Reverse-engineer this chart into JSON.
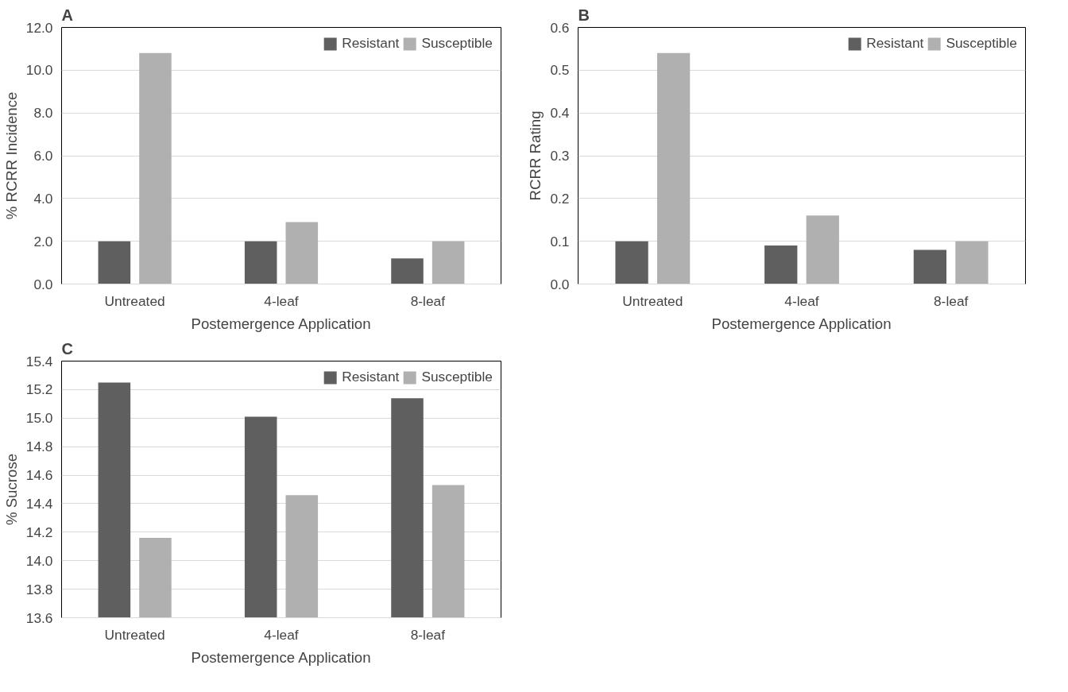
{
  "chart_data": [
    {
      "type": "bar",
      "title": "A",
      "ylabel": "% RCRR Incidence",
      "xlabel": "Postemergence Application",
      "categories": [
        "Untreated",
        "4-leaf",
        "8-leaf"
      ],
      "series": [
        {
          "name": "Resistant",
          "color": "#5f5f5f",
          "values": [
            2.0,
            2.0,
            1.2
          ]
        },
        {
          "name": "Susceptible",
          "color": "#b0b0b0",
          "values": [
            10.8,
            2.9,
            2.0
          ]
        }
      ],
      "ylim": [
        0,
        12
      ],
      "yticks": [
        {
          "value": 0,
          "label": "0.0"
        },
        {
          "value": 2,
          "label": "2.0"
        },
        {
          "value": 4,
          "label": "4.0"
        },
        {
          "value": 6,
          "label": "6.0"
        },
        {
          "value": 8,
          "label": "8.0"
        },
        {
          "value": 10,
          "label": "10.0"
        },
        {
          "value": 12,
          "label": "12.0"
        }
      ],
      "grid": "y",
      "legend": "top right"
    },
    {
      "type": "bar",
      "title": "B",
      "ylabel": "RCRR Rating",
      "xlabel": "Postemergence Application",
      "categories": [
        "Untreated",
        "4-leaf",
        "8-leaf"
      ],
      "series": [
        {
          "name": "Resistant",
          "color": "#5f5f5f",
          "values": [
            0.1,
            0.09,
            0.08
          ]
        },
        {
          "name": "Susceptible",
          "color": "#b0b0b0",
          "values": [
            0.54,
            0.16,
            0.1
          ]
        }
      ],
      "ylim": [
        0,
        0.6
      ],
      "yticks": [
        {
          "value": 0,
          "label": "0.0"
        },
        0.1,
        0.2,
        0.3,
        0.4,
        0.5,
        0.6
      ],
      "grid": "y",
      "legend": "top right"
    },
    {
      "type": "bar",
      "title": "C",
      "ylabel": "% Sucrose",
      "xlabel": "Postemergence Application",
      "categories": [
        "Untreated",
        "4-leaf",
        "8-leaf"
      ],
      "series": [
        {
          "name": "Resistant",
          "color": "#5f5f5f",
          "values": [
            15.25,
            15.01,
            15.14
          ]
        },
        {
          "name": "Susceptible",
          "color": "#b0b0b0",
          "values": [
            14.16,
            14.46,
            14.53
          ]
        }
      ],
      "ylim": [
        13.6,
        15.4
      ],
      "yticks": [
        13.6,
        13.8,
        {
          "value": 14,
          "label": "14.0"
        },
        14.2,
        14.4,
        14.6,
        14.8,
        {
          "value": 15,
          "label": "15.0"
        },
        15.2,
        15.4
      ],
      "grid": "y",
      "legend": "top right"
    }
  ]
}
